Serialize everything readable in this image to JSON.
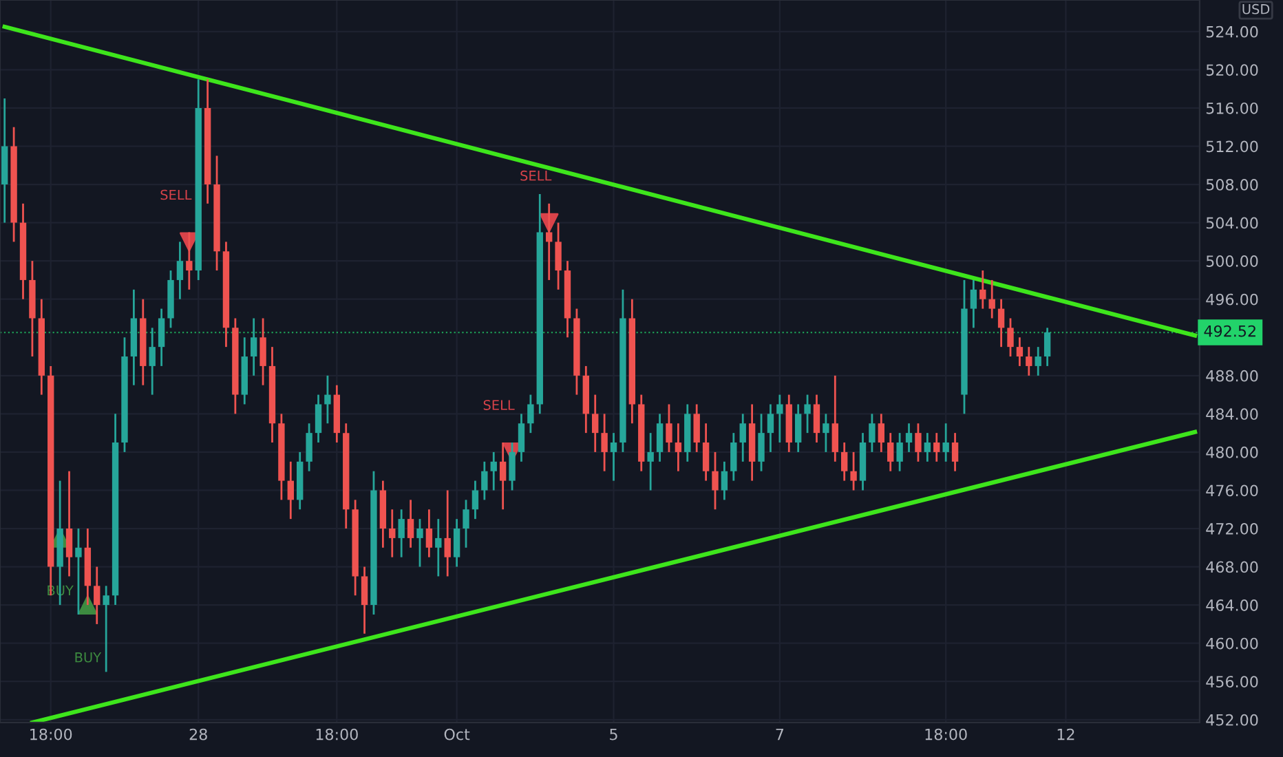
{
  "chart_data": {
    "type": "candlestick",
    "categories": [
      null,
      null,
      null,
      null,
      null,
      "18:00",
      null,
      null,
      null,
      null,
      null,
      null,
      null,
      null,
      null,
      null,
      null,
      null,
      null,
      null,
      null,
      "28",
      null,
      null,
      null,
      null,
      null,
      null,
      null,
      null,
      null,
      null,
      null,
      null,
      null,
      null,
      "18:00",
      null,
      null,
      null,
      null,
      null,
      null,
      null,
      null,
      null,
      null,
      null,
      null,
      "Oct",
      null,
      null,
      null,
      null,
      null,
      null,
      null,
      null,
      null,
      null,
      null,
      null,
      null,
      null,
      null,
      null,
      "5",
      null,
      null,
      null,
      null,
      null,
      null,
      null,
      null,
      null,
      null,
      null,
      null,
      null,
      null,
      null,
      null,
      null,
      "7",
      null,
      null,
      null,
      null,
      null,
      null,
      null,
      null,
      null,
      null,
      null,
      null,
      null,
      null,
      null,
      null,
      null,
      "18:00",
      null,
      null,
      null,
      null,
      null,
      null,
      null,
      null,
      null,
      null,
      null,
      null,
      "12",
      null,
      null,
      null,
      null,
      null,
      null,
      null,
      null,
      null,
      null,
      null,
      null,
      null,
      null
    ],
    "colors": [
      "#26a69a",
      "#ef5350",
      "#ef5350",
      "#ef5350",
      "#ef5350",
      "#ef5350",
      "#26a69a",
      "#ef5350",
      "#26a69a",
      "#ef5350",
      "#ef5350",
      "#26a69a",
      "#26a69a",
      "#26a69a",
      "#26a69a",
      "#ef5350",
      "#26a69a",
      "#26a69a",
      "#26a69a",
      "#26a69a",
      "#ef5350",
      "#26a69a",
      "#ef5350",
      "#ef5350",
      "#ef5350",
      "#ef5350",
      "#26a69a",
      "#26a69a",
      "#ef5350",
      "#ef5350",
      "#ef5350",
      "#ef5350",
      "#26a69a",
      "#26a69a",
      "#26a69a",
      "#26a69a",
      "#ef5350",
      "#ef5350",
      "#ef5350",
      "#ef5350",
      "#26a69a",
      "#ef5350",
      "#ef5350",
      "#26a69a",
      "#ef5350",
      "#26a69a",
      "#ef5350",
      "#26a69a",
      "#ef5350",
      "#26a69a",
      "#26a69a",
      "#26a69a",
      "#26a69a",
      "#26a69a",
      "#ef5350",
      "#26a69a",
      "#26a69a",
      "#26a69a",
      "#26a69a",
      "#ef5350",
      "#ef5350",
      "#ef5350",
      "#ef5350",
      "#ef5350",
      "#ef5350",
      "#ef5350",
      "#26a69a",
      "#26a69a",
      "#ef5350",
      "#ef5350",
      "#26a69a",
      "#26a69a",
      "#ef5350",
      "#ef5350",
      "#26a69a",
      "#ef5350",
      "#ef5350",
      "#ef5350",
      "#26a69a",
      "#26a69a",
      "#26a69a",
      "#ef5350",
      "#26a69a",
      "#26a69a",
      "#26a69a",
      "#ef5350",
      "#26a69a",
      "#26a69a",
      "#ef5350",
      "#26a69a",
      "#ef5350",
      "#ef5350",
      "#ef5350",
      "#26a69a",
      "#26a69a",
      "#ef5350",
      "#ef5350",
      "#26a69a",
      "#26a69a",
      "#ef5350",
      "#26a69a",
      "#ef5350",
      "#26a69a",
      "#ef5350",
      "#26a69a",
      "#26a69a",
      "#ef5350",
      "#ef5350",
      "#ef5350",
      "#ef5350",
      "#ef5350",
      "#ef5350",
      "#26a69a",
      "#26a69a",
      null,
      null,
      null,
      null,
      null,
      null,
      null,
      null,
      null,
      null,
      null,
      null,
      null,
      null,
      null,
      null
    ],
    "ohlc": [
      [
        508,
        517,
        504,
        512
      ],
      [
        512,
        514,
        502,
        504
      ],
      [
        504,
        506,
        496,
        498
      ],
      [
        498,
        500,
        490,
        494
      ],
      [
        494,
        496,
        486,
        488
      ],
      [
        488,
        489,
        465,
        468
      ],
      [
        468,
        477,
        464,
        472
      ],
      [
        472,
        478,
        467,
        469
      ],
      [
        469,
        472,
        463,
        470
      ],
      [
        470,
        472,
        464,
        466
      ],
      [
        466,
        468,
        462,
        464
      ],
      [
        464,
        466,
        457,
        465
      ],
      [
        465,
        484,
        464,
        481
      ],
      [
        481,
        492,
        480,
        490
      ],
      [
        490,
        497,
        487,
        494
      ],
      [
        494,
        496,
        487,
        489
      ],
      [
        489,
        493,
        486,
        491
      ],
      [
        491,
        495,
        489,
        494
      ],
      [
        494,
        499,
        493,
        498
      ],
      [
        498,
        502,
        496,
        500
      ],
      [
        500,
        503,
        497,
        499
      ],
      [
        499,
        519,
        498,
        516
      ],
      [
        516,
        519,
        506,
        508
      ],
      [
        508,
        511,
        499,
        501
      ],
      [
        501,
        502,
        491,
        493
      ],
      [
        493,
        494,
        484,
        486
      ],
      [
        486,
        492,
        485,
        490
      ],
      [
        490,
        494,
        488,
        492
      ],
      [
        492,
        494,
        487,
        489
      ],
      [
        489,
        491,
        481,
        483
      ],
      [
        483,
        484,
        475,
        477
      ],
      [
        477,
        479,
        473,
        475
      ],
      [
        475,
        480,
        474,
        479
      ],
      [
        479,
        483,
        478,
        482
      ],
      [
        482,
        486,
        481,
        485
      ],
      [
        485,
        488,
        483,
        486
      ],
      [
        486,
        487,
        481,
        482
      ],
      [
        482,
        483,
        472,
        474
      ],
      [
        474,
        475,
        465,
        467
      ],
      [
        467,
        468,
        461,
        464
      ],
      [
        464,
        478,
        463,
        476
      ],
      [
        476,
        477,
        470,
        472
      ],
      [
        472,
        474,
        469,
        471
      ],
      [
        471,
        474,
        469,
        473
      ],
      [
        473,
        475,
        470,
        471
      ],
      [
        471,
        473,
        468,
        472
      ],
      [
        472,
        474,
        469,
        470
      ],
      [
        470,
        473,
        467,
        471
      ],
      [
        471,
        476,
        467,
        469
      ],
      [
        469,
        473,
        468,
        472
      ],
      [
        472,
        475,
        470,
        474
      ],
      [
        474,
        477,
        473,
        476
      ],
      [
        476,
        479,
        475,
        478
      ],
      [
        478,
        480,
        476,
        479
      ],
      [
        479,
        481,
        474,
        477
      ],
      [
        477,
        481,
        476,
        480
      ],
      [
        480,
        484,
        479,
        483
      ],
      [
        483,
        486,
        482,
        485
      ],
      [
        485,
        507,
        484,
        503
      ],
      [
        503,
        506,
        498,
        502
      ],
      [
        502,
        504,
        497,
        499
      ],
      [
        499,
        500,
        492,
        494
      ],
      [
        494,
        495,
        486,
        488
      ],
      [
        488,
        489,
        482,
        484
      ],
      [
        484,
        486,
        480,
        482
      ],
      [
        482,
        484,
        478,
        480
      ],
      [
        480,
        482,
        477,
        481
      ],
      [
        481,
        497,
        480,
        494
      ],
      [
        494,
        496,
        483,
        485
      ],
      [
        485,
        486,
        478,
        479
      ],
      [
        479,
        482,
        476,
        480
      ],
      [
        480,
        484,
        479,
        483
      ],
      [
        483,
        485,
        480,
        481
      ],
      [
        481,
        483,
        478,
        480
      ],
      [
        480,
        485,
        479,
        484
      ],
      [
        484,
        485,
        480,
        481
      ],
      [
        481,
        483,
        477,
        478
      ],
      [
        478,
        480,
        474,
        476
      ],
      [
        476,
        479,
        475,
        478
      ],
      [
        478,
        482,
        477,
        481
      ],
      [
        481,
        484,
        479,
        483
      ],
      [
        483,
        485,
        477,
        479
      ],
      [
        479,
        484,
        478,
        482
      ],
      [
        482,
        485,
        480,
        484
      ],
      [
        484,
        486,
        481,
        485
      ],
      [
        485,
        486,
        480,
        481
      ],
      [
        481,
        485,
        480,
        484
      ],
      [
        484,
        486,
        482,
        485
      ],
      [
        485,
        486,
        481,
        482
      ],
      [
        482,
        484,
        480,
        483
      ],
      [
        483,
        488,
        479,
        480
      ],
      [
        480,
        481,
        477,
        478
      ],
      [
        478,
        480,
        476,
        477
      ],
      [
        477,
        482,
        476,
        481
      ],
      [
        481,
        484,
        480,
        483
      ],
      [
        483,
        484,
        480,
        481
      ],
      [
        481,
        482,
        478,
        479
      ],
      [
        479,
        482,
        478,
        481
      ],
      [
        481,
        483,
        480,
        482
      ],
      [
        482,
        483,
        479,
        480
      ],
      [
        480,
        482,
        479,
        481
      ],
      [
        481,
        482,
        479,
        480
      ],
      [
        480,
        483,
        479,
        481
      ],
      [
        481,
        482,
        478,
        479
      ],
      [
        486,
        498,
        484,
        495
      ],
      [
        495,
        498,
        493,
        497
      ],
      [
        497,
        499,
        495,
        496
      ],
      [
        496,
        498,
        494,
        495
      ],
      [
        495,
        496,
        491,
        493
      ],
      [
        493,
        494,
        490,
        491
      ],
      [
        491,
        492,
        489,
        490
      ],
      [
        490,
        491,
        488,
        489
      ],
      [
        489,
        491,
        488,
        490
      ],
      [
        490,
        493,
        489,
        492.52
      ],
      null,
      null,
      null,
      null,
      null,
      null,
      null,
      null,
      null,
      null,
      null,
      null,
      null,
      null,
      null,
      null
    ],
    "series": [
      {
        "type": "line",
        "color": "#3ee51c",
        "values": [
          524.5,
          null,
          null,
          null,
          null,
          null,
          null,
          null,
          null,
          null,
          null,
          null,
          null,
          null,
          null,
          null,
          null,
          null,
          null,
          null,
          null,
          null,
          null,
          null,
          null,
          null,
          null,
          null,
          null,
          null,
          null,
          null,
          null,
          null,
          null,
          null,
          null,
          null,
          null,
          null,
          null,
          null,
          null,
          null,
          null,
          null,
          null,
          null,
          null,
          null,
          null,
          null,
          null,
          null,
          null,
          null,
          null,
          null,
          null,
          null,
          null,
          null,
          null,
          null,
          null,
          null,
          null,
          null,
          null,
          null,
          null,
          null,
          null,
          null,
          null,
          null,
          null,
          null,
          null,
          null,
          null,
          null,
          null,
          null,
          null,
          null,
          null,
          null,
          null,
          null,
          null,
          null,
          null,
          null,
          null,
          null,
          null,
          null,
          null,
          null,
          null,
          null,
          null,
          null,
          null,
          null,
          null,
          null,
          null,
          null,
          null,
          null,
          null,
          null,
          null,
          null,
          null,
          null,
          null,
          null,
          null,
          null,
          null,
          null,
          null,
          null,
          null,
          null,
          null,
          492.2
        ]
      },
      {
        "type": "line",
        "color": "#3ee51c",
        "values": [
          null,
          null,
          null,
          451.7,
          null,
          null,
          null,
          null,
          null,
          null,
          null,
          null,
          null,
          null,
          null,
          null,
          null,
          null,
          null,
          null,
          null,
          null,
          null,
          null,
          null,
          null,
          null,
          null,
          null,
          null,
          null,
          null,
          null,
          null,
          null,
          null,
          null,
          null,
          null,
          null,
          null,
          null,
          null,
          null,
          null,
          null,
          null,
          null,
          null,
          null,
          null,
          null,
          null,
          null,
          null,
          null,
          null,
          null,
          null,
          null,
          null,
          null,
          null,
          null,
          null,
          null,
          null,
          null,
          null,
          null,
          null,
          null,
          null,
          null,
          null,
          null,
          null,
          null,
          null,
          null,
          null,
          null,
          null,
          null,
          null,
          null,
          null,
          null,
          null,
          null,
          null,
          null,
          null,
          null,
          null,
          null,
          null,
          null,
          null,
          null,
          null,
          null,
          null,
          null,
          null,
          null,
          null,
          null,
          null,
          null,
          null,
          null,
          null,
          null,
          null,
          null,
          null,
          null,
          null,
          null,
          null,
          null,
          null,
          null,
          null,
          null,
          null,
          null,
          null,
          482.1
        ]
      },
      {
        "type": "scatter",
        "marker": "triangle_down",
        "color": "#d9434a",
        "values": [
          null,
          null,
          null,
          null,
          null,
          null,
          null,
          null,
          null,
          null,
          null,
          null,
          null,
          null,
          null,
          null,
          null,
          null,
          null,
          null,
          502,
          null,
          null,
          null,
          null,
          null,
          null,
          null,
          null,
          null,
          null,
          null,
          null,
          null,
          null,
          null,
          null,
          null,
          null,
          null,
          null,
          null,
          null,
          null,
          null,
          null,
          null,
          null,
          null,
          null,
          null,
          null,
          null,
          null,
          null,
          480,
          null,
          null,
          null,
          504,
          null,
          null,
          null,
          null,
          null,
          null,
          null,
          null,
          null,
          null,
          null,
          null,
          null,
          null,
          null,
          null,
          null,
          null,
          null,
          null,
          null,
          null,
          null,
          null,
          null,
          null,
          null,
          null,
          null,
          null,
          null,
          null,
          null,
          null,
          null,
          null,
          null,
          null,
          null,
          null,
          null,
          null,
          null,
          null,
          null,
          null,
          null,
          null,
          null,
          null,
          null,
          null,
          null,
          null,
          null,
          null,
          null,
          null,
          null,
          null,
          null,
          null,
          null,
          null,
          null,
          null,
          null,
          null,
          null,
          null
        ],
        "value_labels": [
          null,
          null,
          null,
          null,
          null,
          null,
          null,
          null,
          null,
          null,
          null,
          null,
          null,
          null,
          null,
          null,
          null,
          null,
          null,
          null,
          "SELL",
          null,
          null,
          null,
          null,
          null,
          null,
          null,
          null,
          null,
          null,
          null,
          null,
          null,
          null,
          null,
          null,
          null,
          null,
          null,
          null,
          null,
          null,
          null,
          null,
          null,
          null,
          null,
          null,
          null,
          null,
          null,
          null,
          null,
          null,
          "SELL",
          null,
          null,
          null,
          "SELL",
          null,
          null,
          null,
          null,
          null,
          null,
          null,
          null,
          null,
          null,
          null,
          null,
          null,
          null,
          null,
          null,
          null,
          null,
          null,
          null,
          null,
          null,
          null,
          null,
          null,
          null,
          null,
          null,
          null,
          null,
          null,
          null,
          null,
          null,
          null,
          null,
          null,
          null,
          null,
          null,
          null,
          null,
          null,
          null,
          null,
          null,
          null,
          null,
          null,
          null,
          null,
          null,
          null,
          null,
          null,
          null,
          null,
          null,
          null,
          null,
          null,
          null,
          null,
          null,
          null,
          null,
          null,
          null,
          null,
          null
        ]
      },
      {
        "type": "scatter",
        "marker": "triangle",
        "color": "#3d8b40",
        "values": [
          null,
          null,
          null,
          null,
          null,
          null,
          471,
          null,
          null,
          464,
          null,
          null,
          null,
          null,
          null,
          null,
          null,
          null,
          null,
          null,
          null,
          null,
          null,
          null,
          null,
          null,
          null,
          null,
          null,
          null,
          null,
          null,
          null,
          null,
          null,
          null,
          null,
          null,
          null,
          null,
          null,
          null,
          null,
          null,
          null,
          null,
          null,
          null,
          null,
          null,
          null,
          null,
          null,
          null,
          null,
          null,
          null,
          null,
          null,
          null,
          null,
          null,
          null,
          null,
          null,
          null,
          null,
          null,
          null,
          null,
          null,
          null,
          null,
          null,
          null,
          null,
          null,
          null,
          null,
          null,
          null,
          null,
          null,
          null,
          null,
          null,
          null,
          null,
          null,
          null,
          null,
          null,
          null,
          null,
          null,
          null,
          null,
          null,
          null,
          null,
          null,
          null,
          null,
          null,
          null,
          null,
          null,
          null,
          null,
          null,
          null,
          null,
          null,
          null,
          null,
          null,
          null,
          null,
          null,
          null,
          null,
          null,
          null,
          null,
          null,
          null,
          null,
          null,
          null,
          null
        ],
        "value_labels": [
          null,
          null,
          null,
          null,
          null,
          null,
          "BUY",
          null,
          null,
          "BUY",
          null,
          null,
          null,
          null,
          null,
          null,
          null,
          null,
          null,
          null,
          null,
          null,
          null,
          null,
          null,
          null,
          null,
          null,
          null,
          null,
          null,
          null,
          null,
          null,
          null,
          null,
          null,
          null,
          null,
          null,
          null,
          null,
          null,
          null,
          null,
          null,
          null,
          null,
          null,
          null,
          null,
          null,
          null,
          null,
          null,
          null,
          null,
          null,
          null,
          null,
          null,
          null,
          null,
          null,
          null,
          null,
          null,
          null,
          null,
          null,
          null,
          null,
          null,
          null,
          null,
          null,
          null,
          null,
          null,
          null,
          null,
          null,
          null,
          null,
          null,
          null,
          null,
          null,
          null,
          null,
          null,
          null,
          null,
          null,
          null,
          null,
          null,
          null,
          null,
          null,
          null,
          null,
          null,
          null,
          null,
          null,
          null,
          null,
          null,
          null,
          null,
          null,
          null,
          null,
          null,
          null,
          null,
          null,
          null,
          null,
          null,
          null,
          null,
          null,
          null,
          null,
          null,
          null,
          null,
          null
        ]
      }
    ],
    "ylim": [
      451.7,
      527.3
    ],
    "yticks": [
      {
        "value": 452,
        "label": "452.00"
      },
      {
        "value": 456,
        "label": "456.00"
      },
      {
        "value": 460,
        "label": "460.00"
      },
      {
        "value": 464,
        "label": "464.00"
      },
      {
        "value": 468,
        "label": "468.00"
      },
      {
        "value": 472,
        "label": "472.00"
      },
      {
        "value": 476,
        "label": "476.00"
      },
      {
        "value": 480,
        "label": "480.00"
      },
      {
        "value": 484,
        "label": "484.00"
      },
      {
        "value": 488,
        "label": "488.00"
      },
      {
        "value": 496,
        "label": "496.00"
      },
      {
        "value": 500,
        "label": "500.00"
      },
      {
        "value": 504,
        "label": "504.00"
      },
      {
        "value": 508,
        "label": "508.00"
      },
      {
        "value": 512,
        "label": "512.00"
      },
      {
        "value": 516,
        "label": "516.00"
      },
      {
        "value": 520,
        "label": "520.00"
      },
      {
        "value": 524,
        "label": "524.00"
      }
    ],
    "ref_lines": [
      {
        "axis": "y",
        "value": 492.52,
        "label": "492.52",
        "color": "#22d36a",
        "line_style": "dotted"
      }
    ],
    "annotations": [
      "USD"
    ],
    "grid": true,
    "legend": false
  }
}
